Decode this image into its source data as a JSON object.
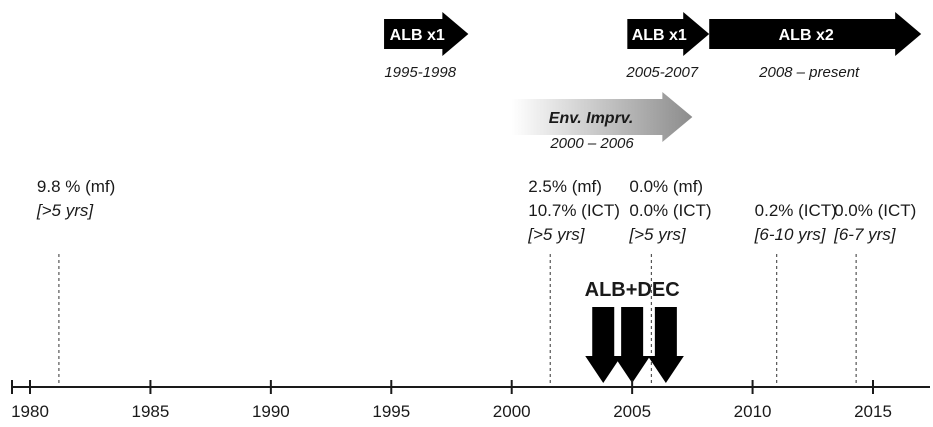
{
  "timeline": {
    "ticks": [
      "1980",
      "1985",
      "1990",
      "1995",
      "2000",
      "2005",
      "2010",
      "2015"
    ],
    "axis_start_year": 1980,
    "axis_end_year": 2017.5
  },
  "interventions": [
    {
      "id": "alb-x1-a",
      "label": "ALB x1",
      "period": "1995-1998",
      "start": 1994.7,
      "end": 1998.2,
      "style": "black"
    },
    {
      "id": "alb-x1-b",
      "label": "ALB x1",
      "period": "2005-2007",
      "start": 2004.8,
      "end": 2008.2,
      "style": "black"
    },
    {
      "id": "alb-x2",
      "label": "ALB x2",
      "period": "2008 – present",
      "start": 2008.2,
      "end": 2017.0,
      "style": "black"
    },
    {
      "id": "env-imprv",
      "label": "Env. Imprv.",
      "period": "2000 – 2006",
      "start": 2000.0,
      "end": 2007.5,
      "style": "gradient"
    }
  ],
  "alb_dec": {
    "label": "ALB+DEC",
    "arrow_years": [
      2003.8,
      2005.0,
      2006.4
    ]
  },
  "surveys": [
    {
      "id": "s1981",
      "year": 1981.2,
      "lines": [
        "9.8 % (mf)"
      ],
      "duration": "[>5 yrs]"
    },
    {
      "id": "s2001",
      "year": 2001.6,
      "lines": [
        "2.5% (mf)",
        "10.7% (ICT)"
      ],
      "duration": "[>5 yrs]"
    },
    {
      "id": "s2006",
      "year": 2005.8,
      "lines": [
        "0.0% (mf)",
        "0.0% (ICT)"
      ],
      "duration": "[>5 yrs]"
    },
    {
      "id": "s2011",
      "year": 2011.0,
      "lines": [
        "0.2% (ICT)"
      ],
      "duration": "[6-10 yrs]"
    },
    {
      "id": "s2014",
      "year": 2014.3,
      "lines": [
        "0.0% (ICT)"
      ],
      "duration": "[6-7 yrs]"
    }
  ],
  "colors": {
    "arrow": "#000000",
    "axis": "#1a1a1a",
    "survey_line": "#555555",
    "gradient_start": "#ffffff",
    "gradient_end": "#8c8c8c"
  }
}
